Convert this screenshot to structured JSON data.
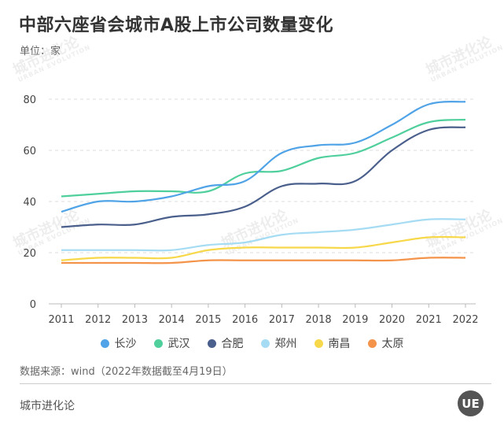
{
  "title": "中部六座省会城市A股上市公司数量变化",
  "unit": "单位：家",
  "source": "数据来源：wind（2022年数据截至4月19日）",
  "brand": "城市进化论",
  "logo_text": "UE",
  "watermark": {
    "cn": "城市进化论",
    "en": "URBAN EVOLUTION"
  },
  "chart_data": {
    "type": "line",
    "title": "中部六座省会城市A股上市公司数量变化",
    "ylabel": "单位：家",
    "x": [
      "2011",
      "2012",
      "2013",
      "2014",
      "2015",
      "2016",
      "2017",
      "2018",
      "2019",
      "2020",
      "2021",
      "2022"
    ],
    "ylim": [
      0,
      80
    ],
    "yticks": [
      "0",
      "20",
      "40",
      "60",
      "80"
    ],
    "grid": true,
    "legend": "bottom",
    "series": [
      {
        "name": "长沙",
        "color": "#4fa3e6",
        "values": [
          36,
          40,
          40,
          42,
          46,
          48,
          59,
          62,
          63,
          70,
          78,
          79
        ]
      },
      {
        "name": "武汉",
        "color": "#4fcf9c",
        "values": [
          42,
          43,
          44,
          44,
          44,
          51,
          52,
          57,
          59,
          65,
          71,
          72
        ]
      },
      {
        "name": "合肥",
        "color": "#4a5f8c",
        "values": [
          30,
          31,
          31,
          34,
          35,
          38,
          46,
          47,
          48,
          60,
          68,
          69
        ]
      },
      {
        "name": "郑州",
        "color": "#a6dcf3",
        "values": [
          21,
          21,
          21,
          21,
          23,
          24,
          27,
          28,
          29,
          31,
          33,
          33
        ]
      },
      {
        "name": "南昌",
        "color": "#f7d84a",
        "values": [
          17,
          18,
          18,
          18,
          21,
          22,
          22,
          22,
          22,
          24,
          26,
          26
        ]
      },
      {
        "name": "太原",
        "color": "#f4934a",
        "values": [
          16,
          16,
          16,
          16,
          17,
          17,
          17,
          17,
          17,
          17,
          18,
          18
        ]
      }
    ]
  }
}
